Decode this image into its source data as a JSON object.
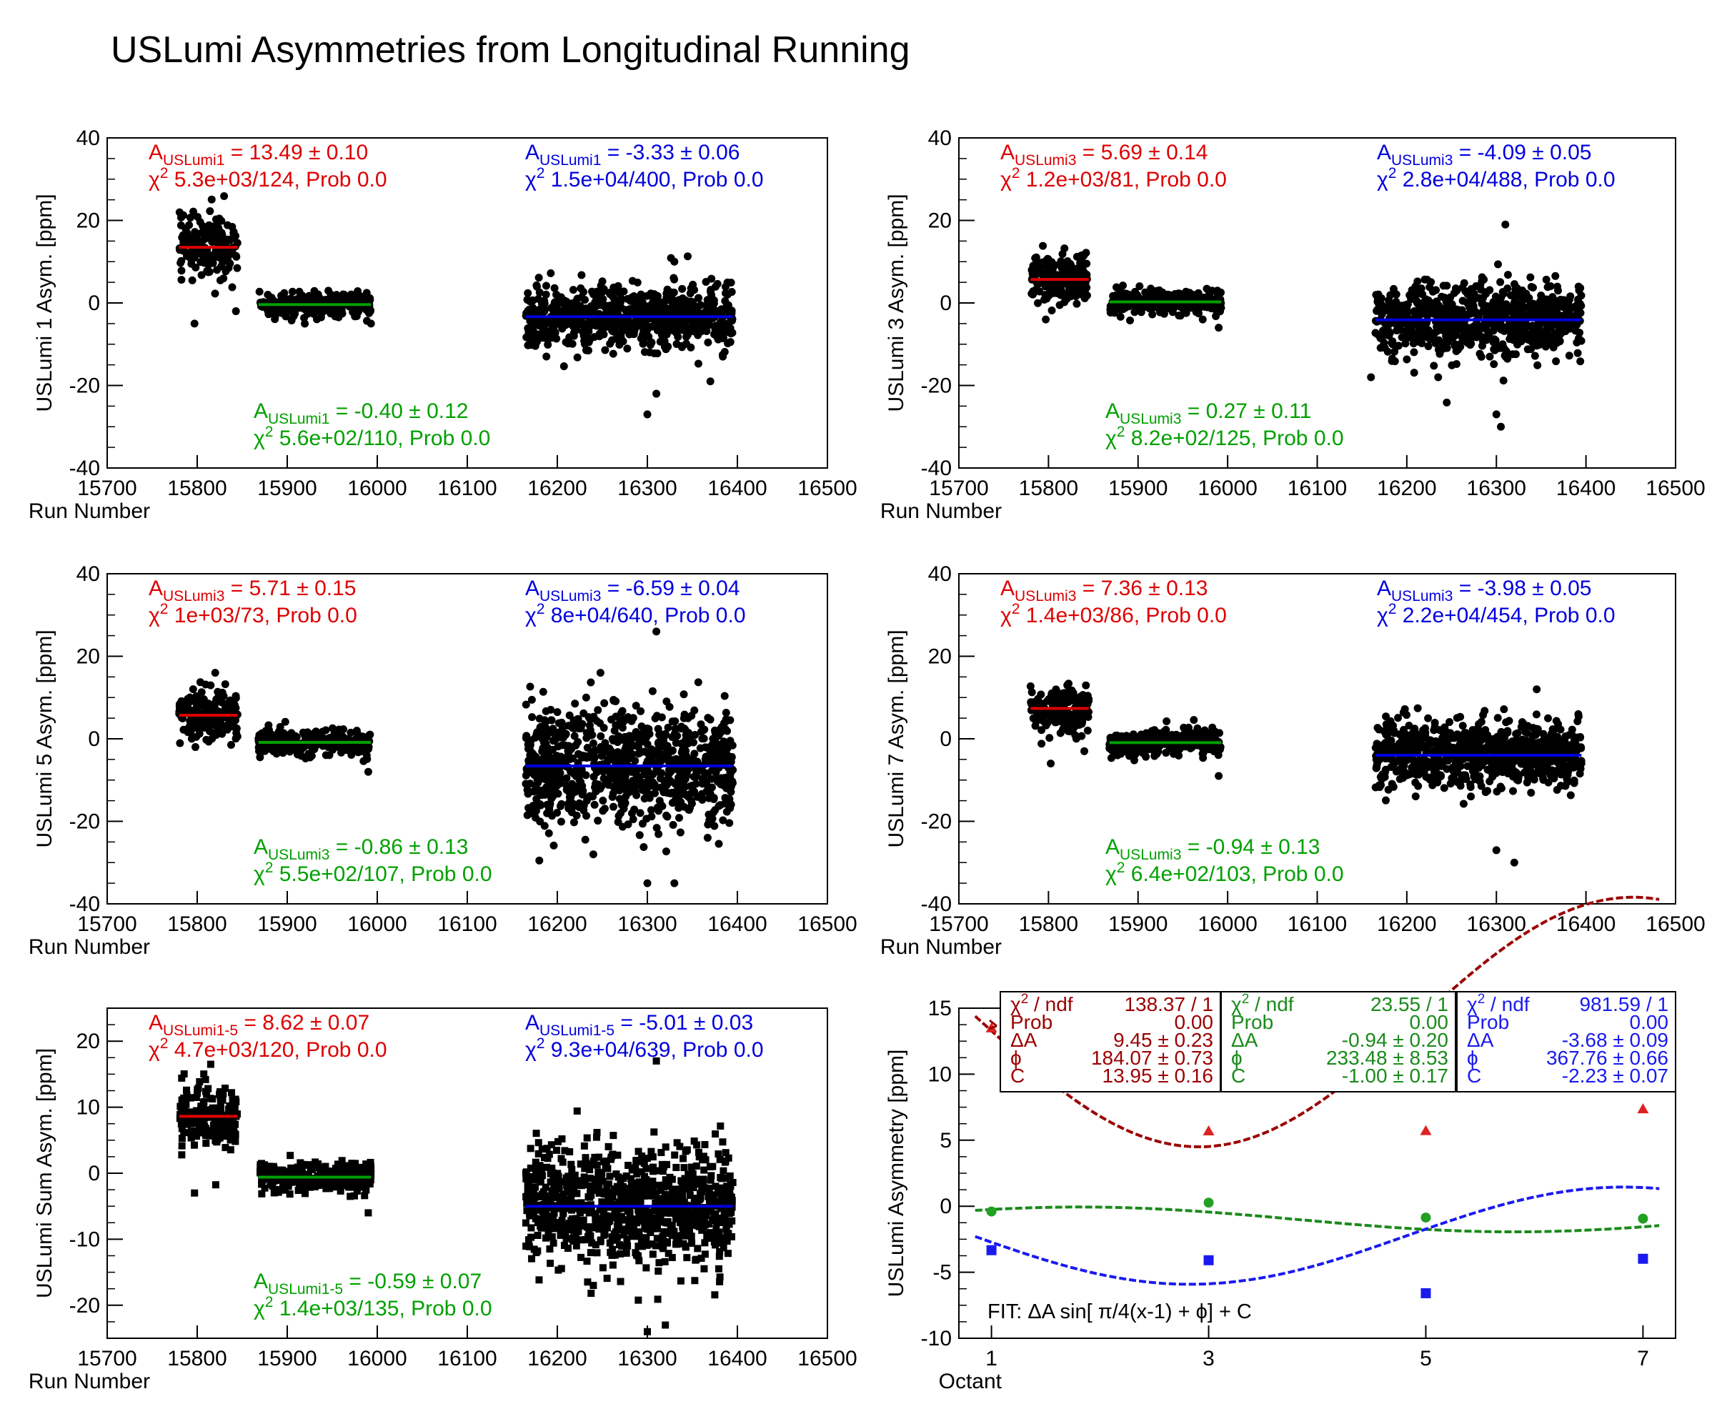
{
  "page_title": "USLumi Asymmetries from Longitudinal Running",
  "colors": {
    "red": "#dd0000",
    "green": "#00a000",
    "blue": "#0000dd",
    "darkred": "#9b0000",
    "black": "#000000"
  },
  "chart_data": [
    {
      "type": "scatter",
      "name": "uslumi1",
      "ylabel": "USLumi 1 Asym. [ppm]",
      "xlabel": "Run Number",
      "xlim": [
        15700,
        16500
      ],
      "ylim": [
        -40,
        40
      ],
      "xticks": [
        "15700",
        "15800",
        "15900",
        "16000",
        "16100",
        "16200",
        "16300",
        "16400",
        "16500"
      ],
      "yticks": [
        "-40",
        "-20",
        "0",
        "20",
        "40"
      ],
      "marker": "circle",
      "groups": [
        {
          "color": "red",
          "x": [
            15780,
            15845
          ],
          "mean": 13.49,
          "spread": 4,
          "seed": 11,
          "n": 180,
          "outliers": [
            [
              15797,
              -5
            ],
            [
              15843,
              -2
            ]
          ]
        },
        {
          "color": "green",
          "x": [
            15868,
            15993
          ],
          "mean": -0.4,
          "spread": 1.5,
          "seed": 12,
          "n": 300,
          "outliers": [
            [
              15993,
              -5
            ]
          ]
        },
        {
          "color": "blue",
          "x": [
            16165,
            16395
          ],
          "mean": -3.33,
          "spread": 4,
          "seed": 13,
          "n": 700,
          "outliers": [
            [
              16300,
              -27
            ],
            [
              16310,
              -22
            ],
            [
              16370,
              -19
            ],
            [
              16330,
              10
            ]
          ]
        }
      ],
      "fits": [
        {
          "color": "red",
          "x": [
            15780,
            15845
          ],
          "value": 13.49
        },
        {
          "color": "green",
          "x": [
            15868,
            15993
          ],
          "value": -0.4
        },
        {
          "color": "blue",
          "x": [
            16165,
            16395
          ],
          "value": -3.33
        }
      ],
      "annotations": [
        {
          "color": "red",
          "pos": "tl",
          "a_sub": "USLumi1",
          "a_val": "= 13.49 ± 0.10",
          "chi": "5.3e+03/124, Prob 0.0"
        },
        {
          "color": "blue",
          "pos": "tr",
          "a_sub": "USLumi1",
          "a_val": "= -3.33 ± 0.06",
          "chi": "1.5e+04/400, Prob 0.0"
        },
        {
          "color": "green",
          "pos": "bl",
          "a_sub": "USLumi1",
          "a_val": "= -0.40 ± 0.12",
          "chi": "5.6e+02/110, Prob 0.0"
        }
      ]
    },
    {
      "type": "scatter",
      "name": "uslumi3",
      "ylabel": "USLumi 3 Asym. [ppm]",
      "xlabel": "Run Number",
      "xlim": [
        15700,
        16500
      ],
      "ylim": [
        -40,
        40
      ],
      "xticks": [
        "15700",
        "15800",
        "15900",
        "16000",
        "16100",
        "16200",
        "16300",
        "16400",
        "16500"
      ],
      "yticks": [
        "-40",
        "-20",
        "0",
        "20",
        "40"
      ],
      "marker": "circle",
      "groups": [
        {
          "color": "red",
          "x": [
            15780,
            15845
          ],
          "mean": 5.69,
          "spread": 3,
          "seed": 21,
          "n": 170,
          "outliers": [
            [
              15797,
              -4
            ]
          ]
        },
        {
          "color": "green",
          "x": [
            15868,
            15993
          ],
          "mean": 0.27,
          "spread": 1.5,
          "seed": 22,
          "n": 300,
          "outliers": [
            [
              15990,
              -6
            ]
          ]
        },
        {
          "color": "blue",
          "x": [
            16165,
            16395
          ],
          "mean": -4.09,
          "spread": 4.5,
          "seed": 23,
          "n": 700,
          "outliers": [
            [
              16305,
              -30
            ],
            [
              16310,
              19
            ],
            [
              16300,
              -27
            ],
            [
              16160,
              -18
            ],
            [
              16235,
              -18
            ]
          ]
        }
      ],
      "fits": [
        {
          "color": "red",
          "x": [
            15780,
            15845
          ],
          "value": 5.69
        },
        {
          "color": "green",
          "x": [
            15868,
            15993
          ],
          "value": 0.27
        },
        {
          "color": "blue",
          "x": [
            16165,
            16395
          ],
          "value": -4.09
        }
      ],
      "annotations": [
        {
          "color": "red",
          "pos": "tl",
          "a_sub": "USLumi3",
          "a_val": "= 5.69 ± 0.14",
          "chi": "1.2e+03/81, Prob 0.0"
        },
        {
          "color": "blue",
          "pos": "tr",
          "a_sub": "USLumi3",
          "a_val": "= -4.09 ± 0.05",
          "chi": "2.8e+04/488, Prob 0.0"
        },
        {
          "color": "green",
          "pos": "bl",
          "a_sub": "USLumi3",
          "a_val": "= 0.27 ± 0.11",
          "chi": "8.2e+02/125, Prob 0.0"
        }
      ]
    },
    {
      "type": "scatter",
      "name": "uslumi5",
      "ylabel": "USLumi 5 Asym. [ppm]",
      "xlabel": "Run Number",
      "xlim": [
        15700,
        16500
      ],
      "ylim": [
        -40,
        40
      ],
      "xticks": [
        "15700",
        "15800",
        "15900",
        "16000",
        "16100",
        "16200",
        "16300",
        "16400",
        "16500"
      ],
      "yticks": [
        "-40",
        "-20",
        "0",
        "20",
        "40"
      ],
      "marker": "circle",
      "groups": [
        {
          "color": "red",
          "x": [
            15780,
            15845
          ],
          "mean": 5.71,
          "spread": 3,
          "seed": 31,
          "n": 170,
          "outliers": [
            [
              15798,
              -2
            ],
            [
              15820,
              16
            ]
          ]
        },
        {
          "color": "green",
          "x": [
            15868,
            15993
          ],
          "mean": -0.86,
          "spread": 1.5,
          "seed": 32,
          "n": 300,
          "outliers": [
            [
              15990,
              -8
            ]
          ]
        },
        {
          "color": "blue",
          "x": [
            16165,
            16395
          ],
          "mean": -6.59,
          "spread": 7,
          "seed": 33,
          "n": 900,
          "outliers": [
            [
              16300,
              -35
            ],
            [
              16310,
              26
            ],
            [
              16330,
              -35
            ],
            [
              16240,
              -28
            ]
          ]
        }
      ],
      "fits": [
        {
          "color": "red",
          "x": [
            15780,
            15845
          ],
          "value": 5.71
        },
        {
          "color": "green",
          "x": [
            15868,
            15993
          ],
          "value": -0.86
        },
        {
          "color": "blue",
          "x": [
            16165,
            16395
          ],
          "value": -6.59
        }
      ],
      "annotations": [
        {
          "color": "red",
          "pos": "tl",
          "a_sub": "USLumi3",
          "a_val": "= 5.71 ± 0.15",
          "chi": "1e+03/73, Prob 0.0"
        },
        {
          "color": "blue",
          "pos": "tr",
          "a_sub": "USLumi3",
          "a_val": "= -6.59 ± 0.04",
          "chi": "8e+04/640, Prob 0.0"
        },
        {
          "color": "green",
          "pos": "bl",
          "a_sub": "USLumi3",
          "a_val": "= -0.86 ± 0.13",
          "chi": "5.5e+02/107, Prob 0.0"
        }
      ]
    },
    {
      "type": "scatter",
      "name": "uslumi7",
      "ylabel": "USLumi 7 Asym. [ppm]",
      "xlabel": "Run Number",
      "xlim": [
        15700,
        16500
      ],
      "ylim": [
        -40,
        40
      ],
      "xticks": [
        "15700",
        "15800",
        "15900",
        "16000",
        "16100",
        "16200",
        "16300",
        "16400",
        "16500"
      ],
      "yticks": [
        "-40",
        "-20",
        "0",
        "20",
        "40"
      ],
      "marker": "circle",
      "groups": [
        {
          "color": "red",
          "x": [
            15780,
            15845
          ],
          "mean": 7.36,
          "spread": 3,
          "seed": 41,
          "n": 170,
          "outliers": [
            [
              15840,
              -3
            ]
          ]
        },
        {
          "color": "green",
          "x": [
            15868,
            15993
          ],
          "mean": -0.94,
          "spread": 1.5,
          "seed": 42,
          "n": 300,
          "outliers": [
            [
              15990,
              -9
            ]
          ]
        },
        {
          "color": "blue",
          "x": [
            16165,
            16395
          ],
          "mean": -3.98,
          "spread": 4,
          "seed": 43,
          "n": 800,
          "outliers": [
            [
              16300,
              -27
            ],
            [
              16320,
              -30
            ],
            [
              16345,
              12
            ]
          ]
        }
      ],
      "fits": [
        {
          "color": "red",
          "x": [
            15780,
            15845
          ],
          "value": 7.36
        },
        {
          "color": "green",
          "x": [
            15868,
            15993
          ],
          "value": -0.94
        },
        {
          "color": "blue",
          "x": [
            16165,
            16395
          ],
          "value": -3.98
        }
      ],
      "annotations": [
        {
          "color": "red",
          "pos": "tl",
          "a_sub": "USLumi3",
          "a_val": "= 7.36 ± 0.13",
          "chi": "1.4e+03/86, Prob 0.0"
        },
        {
          "color": "blue",
          "pos": "tr",
          "a_sub": "USLumi3",
          "a_val": "= -3.98 ± 0.05",
          "chi": "2.2e+04/454, Prob 0.0"
        },
        {
          "color": "green",
          "pos": "bl",
          "a_sub": "USLumi3",
          "a_val": "= -0.94 ± 0.13",
          "chi": "6.4e+02/103, Prob 0.0"
        }
      ]
    },
    {
      "type": "scatter",
      "name": "uslumi-sum",
      "ylabel": "USLumi Sum Asym. [ppm]",
      "xlabel": "Run Number",
      "xlim": [
        15700,
        16500
      ],
      "ylim": [
        -25,
        25
      ],
      "xticks": [
        "15700",
        "15800",
        "15900",
        "16000",
        "16100",
        "16200",
        "16300",
        "16400",
        "16500"
      ],
      "yticks": [
        "-20",
        "-10",
        "0",
        "10",
        "20"
      ],
      "marker": "square",
      "groups": [
        {
          "color": "red",
          "x": [
            15780,
            15845
          ],
          "mean": 8.62,
          "spread": 2.5,
          "seed": 51,
          "n": 180,
          "outliers": [
            [
              15797,
              -3
            ],
            [
              15815,
              16.5
            ]
          ]
        },
        {
          "color": "green",
          "x": [
            15868,
            15993
          ],
          "mean": -0.59,
          "spread": 1,
          "seed": 52,
          "n": 300,
          "outliers": [
            [
              15990,
              -6
            ]
          ]
        },
        {
          "color": "blue",
          "x": [
            16165,
            16395
          ],
          "mean": -5.01,
          "spread": 4.5,
          "seed": 53,
          "n": 900,
          "outliers": [
            [
              16300,
              -24
            ],
            [
              16310,
              17
            ],
            [
              16320,
              -23
            ],
            [
              16240,
              -17
            ]
          ]
        }
      ],
      "fits": [
        {
          "color": "red",
          "x": [
            15780,
            15845
          ],
          "value": 8.62
        },
        {
          "color": "green",
          "x": [
            15868,
            15993
          ],
          "value": -0.59
        },
        {
          "color": "blue",
          "x": [
            16165,
            16395
          ],
          "value": -5.01
        }
      ],
      "annotations": [
        {
          "color": "red",
          "pos": "tl",
          "a_sub": "USLumi1-5",
          "a_val": "= 8.62 ± 0.07",
          "chi": "4.7e+03/120, Prob 0.0"
        },
        {
          "color": "blue",
          "pos": "tr",
          "a_sub": "USLumi1-5",
          "a_val": "= -5.01 ± 0.03",
          "chi": "9.3e+04/639, Prob 0.0"
        },
        {
          "color": "green",
          "pos": "bl",
          "a_sub": "USLumi1-5",
          "a_val": "= -0.59 ± 0.07",
          "chi": "1.4e+03/135, Prob 0.0"
        }
      ]
    },
    {
      "type": "line",
      "name": "octant-fit",
      "ylabel": "USLumi Asymmetry [ppm]",
      "xlabel": "Octant",
      "xlim": [
        0.7,
        7.3
      ],
      "ylim": [
        -10,
        15
      ],
      "xticks": [
        "1",
        "3",
        "5",
        "7"
      ],
      "yticks": [
        "-10",
        "-5",
        "0",
        "5",
        "10",
        "15"
      ],
      "series": [
        {
          "color": "red",
          "marker": "triangle",
          "x": [
            1,
            3,
            5,
            7
          ],
          "values": [
            13.49,
            5.69,
            5.71,
            7.36
          ],
          "fit": {
            "dA": 9.45,
            "phi": 184.07,
            "C": 13.95
          },
          "stats": {
            "chi_label": "χ",
            "chi_sup": "2",
            "chi_rest": " / ndf",
            "chi_val": "138.37 / 1",
            "prob_label": "Prob",
            "prob_val": "0.00",
            "da_label": "ΔA",
            "da_val": "9.45 ± 0.23",
            "phi_label": "ϕ",
            "phi_val": "184.07 ± 0.73",
            "c_label": "C",
            "c_val": "13.95 ± 0.16"
          }
        },
        {
          "color": "green",
          "marker": "circle",
          "x": [
            1,
            3,
            5,
            7
          ],
          "values": [
            -0.4,
            0.27,
            -0.86,
            -0.94
          ],
          "fit": {
            "dA": -0.94,
            "phi": 233.48,
            "C": -1.0
          },
          "stats": {
            "chi_label": "χ",
            "chi_sup": "2",
            "chi_rest": " / ndf",
            "chi_val": "23.55 / 1",
            "prob_label": "Prob",
            "prob_val": "0.00",
            "da_label": "ΔA",
            "da_val": "-0.94 ± 0.20",
            "phi_label": "ϕ",
            "phi_val": "233.48 ± 8.53",
            "c_label": "C",
            "c_val": "-1.00 ± 0.17"
          }
        },
        {
          "color": "blue",
          "marker": "square",
          "x": [
            1,
            3,
            5,
            7
          ],
          "values": [
            -3.33,
            -4.09,
            -6.59,
            -3.98
          ],
          "fit": {
            "dA": -3.68,
            "phi": 367.76,
            "C": -2.23
          },
          "stats": {
            "chi_label": "χ",
            "chi_sup": "2",
            "chi_rest": " / ndf",
            "chi_val": "981.59 / 1",
            "prob_label": "Prob",
            "prob_val": "0.00",
            "da_label": "ΔA",
            "da_val": "-3.68 ± 0.09",
            "phi_label": "ϕ",
            "phi_val": "367.76 ± 0.66",
            "c_label": "C",
            "c_val": "-2.23 ± 0.07"
          }
        }
      ],
      "fit_formula": "FIT: ΔA sin[ π/4(x-1) + ϕ] + C"
    }
  ]
}
